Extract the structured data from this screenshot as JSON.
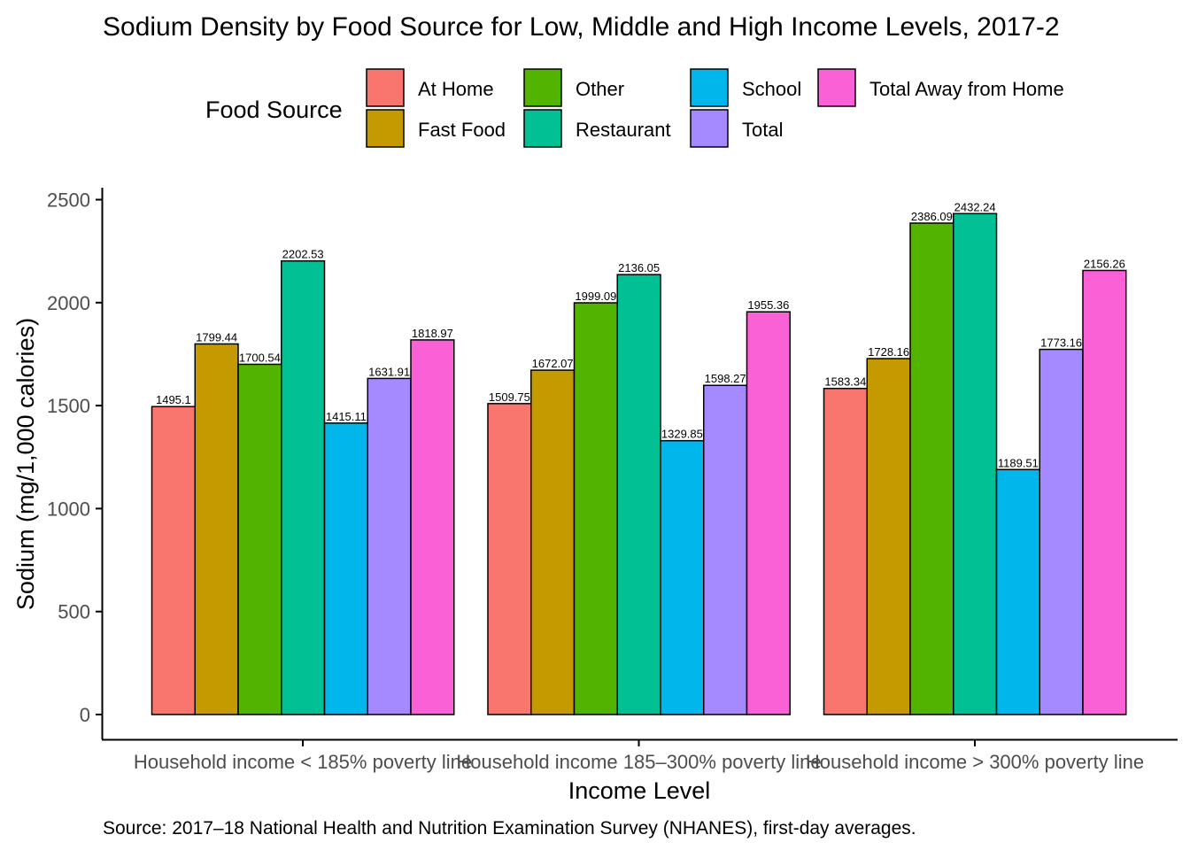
{
  "chart_data": {
    "type": "bar",
    "title": "Sodium Density by Food Source for Low, Middle and High Income Levels, 2017-2",
    "xlabel": "Income Level",
    "ylabel": "Sodium (mg/1,000 calories)",
    "caption": "Source: 2017–18 National Health and Nutrition Examination Survey (NHANES), first-day averages.",
    "legend_title": "Food Source",
    "legend_position": "top",
    "grid": false,
    "ylim": [
      0,
      2550
    ],
    "yticks": [
      0,
      500,
      1000,
      1500,
      2000,
      2500
    ],
    "categories": [
      "Household income < 185% poverty line",
      "Household income 185–300% poverty line",
      "Household income > 300% poverty line"
    ],
    "series": [
      {
        "name": "At Home",
        "color": "#F8766D",
        "values": [
          1495.1,
          1509.75,
          1583.34
        ],
        "labels": [
          "1495.1",
          "1509.75",
          "1583.34"
        ]
      },
      {
        "name": "Fast Food",
        "color": "#C49A00",
        "values": [
          1799.44,
          1672.07,
          1728.16
        ],
        "labels": [
          "1799.44",
          "1672.07",
          "1728.16"
        ]
      },
      {
        "name": "Other",
        "color": "#53B400",
        "values": [
          1700.54,
          1999.09,
          2386.09
        ],
        "labels": [
          "1700.54",
          "1999.09",
          "2386.09"
        ]
      },
      {
        "name": "Restaurant",
        "color": "#00C094",
        "values": [
          2202.53,
          2136.05,
          2432.24
        ],
        "labels": [
          "2202.53",
          "2136.05",
          "2432.24"
        ]
      },
      {
        "name": "School",
        "color": "#00B6EB",
        "values": [
          1415.11,
          1329.85,
          1189.51
        ],
        "labels": [
          "1415.11",
          "1329.85",
          "1189.51"
        ]
      },
      {
        "name": "Total",
        "color": "#A58AFF",
        "values": [
          1631.91,
          1598.27,
          1773.16
        ],
        "labels": [
          "1631.91",
          "1598.27",
          "1773.16"
        ]
      },
      {
        "name": "Total Away from Home",
        "color": "#FB61D7",
        "values": [
          1818.97,
          1955.36,
          2156.26
        ],
        "labels": [
          "1818.97",
          "1955.36",
          "2156.26"
        ]
      }
    ]
  }
}
